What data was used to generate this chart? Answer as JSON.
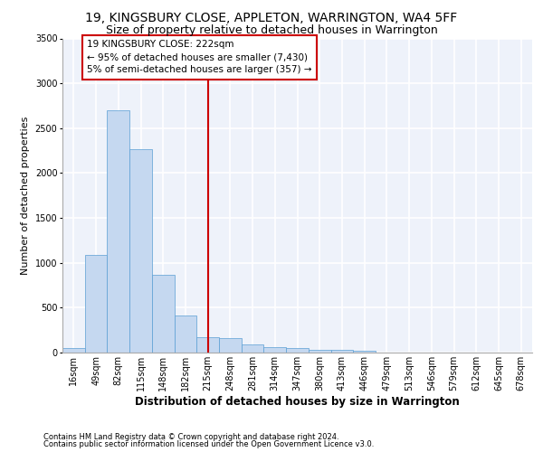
{
  "title1": "19, KINGSBURY CLOSE, APPLETON, WARRINGTON, WA4 5FF",
  "title2": "Size of property relative to detached houses in Warrington",
  "xlabel": "Distribution of detached houses by size in Warrington",
  "ylabel": "Number of detached properties",
  "footer1": "Contains HM Land Registry data © Crown copyright and database right 2024.",
  "footer2": "Contains public sector information licensed under the Open Government Licence v3.0.",
  "bin_labels": [
    "16sqm",
    "49sqm",
    "82sqm",
    "115sqm",
    "148sqm",
    "182sqm",
    "215sqm",
    "248sqm",
    "281sqm",
    "314sqm",
    "347sqm",
    "380sqm",
    "413sqm",
    "446sqm",
    "479sqm",
    "513sqm",
    "546sqm",
    "579sqm",
    "612sqm",
    "645sqm",
    "678sqm"
  ],
  "bar_values": [
    50,
    1090,
    2700,
    2270,
    870,
    415,
    170,
    165,
    90,
    65,
    50,
    35,
    30,
    20,
    0,
    0,
    0,
    0,
    0,
    0,
    0
  ],
  "bar_color": "#c5d8f0",
  "bar_edge_color": "#5a9fd4",
  "vline_x": 6.0,
  "vline_color": "#cc0000",
  "annotation_line1": "19 KINGSBURY CLOSE: 222sqm",
  "annotation_line2": "← 95% of detached houses are smaller (7,430)",
  "annotation_line3": "5% of semi-detached houses are larger (357) →",
  "annotation_box_color": "#cc0000",
  "ylim": [
    0,
    3500
  ],
  "yticks": [
    0,
    500,
    1000,
    1500,
    2000,
    2500,
    3000,
    3500
  ],
  "bg_color": "#eef2fa",
  "grid_color": "#ffffff",
  "title1_fontsize": 10,
  "title2_fontsize": 9,
  "xlabel_fontsize": 8.5,
  "ylabel_fontsize": 8,
  "tick_fontsize": 7,
  "footer_fontsize": 6,
  "annot_fontsize": 7.5
}
